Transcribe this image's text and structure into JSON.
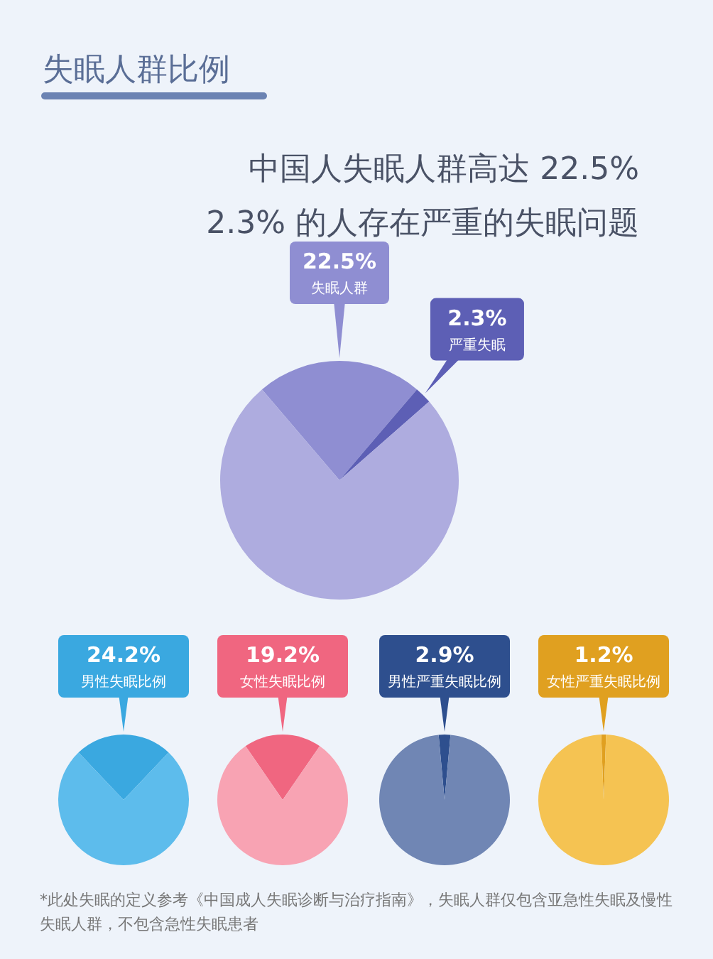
{
  "chart_data": [
    {
      "type": "pie",
      "title": "失眠人群比例",
      "subtitle": "中国人失眠人群高达 22.5%",
      "annotations": [
        "2.3% 的人存在严重的失眠问题"
      ],
      "categories": [
        "失眠人群",
        "严重失眠",
        null
      ],
      "values": [
        22.5,
        2.3,
        75.2
      ],
      "colors": [
        "#8f8ed2",
        "#5d5fb5",
        "#aeacdf"
      ],
      "value_labels": [
        "22.5%",
        "2.3%",
        null
      ]
    },
    {
      "type": "pie",
      "categories": [
        "男性失眠比例",
        null
      ],
      "values": [
        24.2,
        75.8
      ],
      "colors": [
        "#3aa8e0",
        "#5dbcec"
      ],
      "value_labels": [
        "24.2%",
        null
      ]
    },
    {
      "type": "pie",
      "categories": [
        "女性失眠比例",
        null
      ],
      "values": [
        19.2,
        80.8
      ],
      "colors": [
        "#f06680",
        "#f8a3b3"
      ],
      "value_labels": [
        "19.2%",
        null
      ]
    },
    {
      "type": "pie",
      "categories": [
        "男性严重失眠比例",
        null
      ],
      "values": [
        2.9,
        97.1
      ],
      "colors": [
        "#2e4f8e",
        "#7086b4"
      ],
      "value_labels": [
        "2.9%",
        null
      ]
    },
    {
      "type": "pie",
      "categories": [
        "女性严重失眠比例",
        null
      ],
      "values": [
        1.2,
        98.8
      ],
      "colors": [
        "#e0a020",
        "#f5c352"
      ],
      "value_labels": [
        "1.2%",
        null
      ],
      "annotations": [
        "*此处失眠的定义参考《中国成人失眠诊断与治疗指南》，失眠人群仅包含亚急性失眠及慢性失眠人群，不包含急性失眠患者"
      ]
    }
  ]
}
